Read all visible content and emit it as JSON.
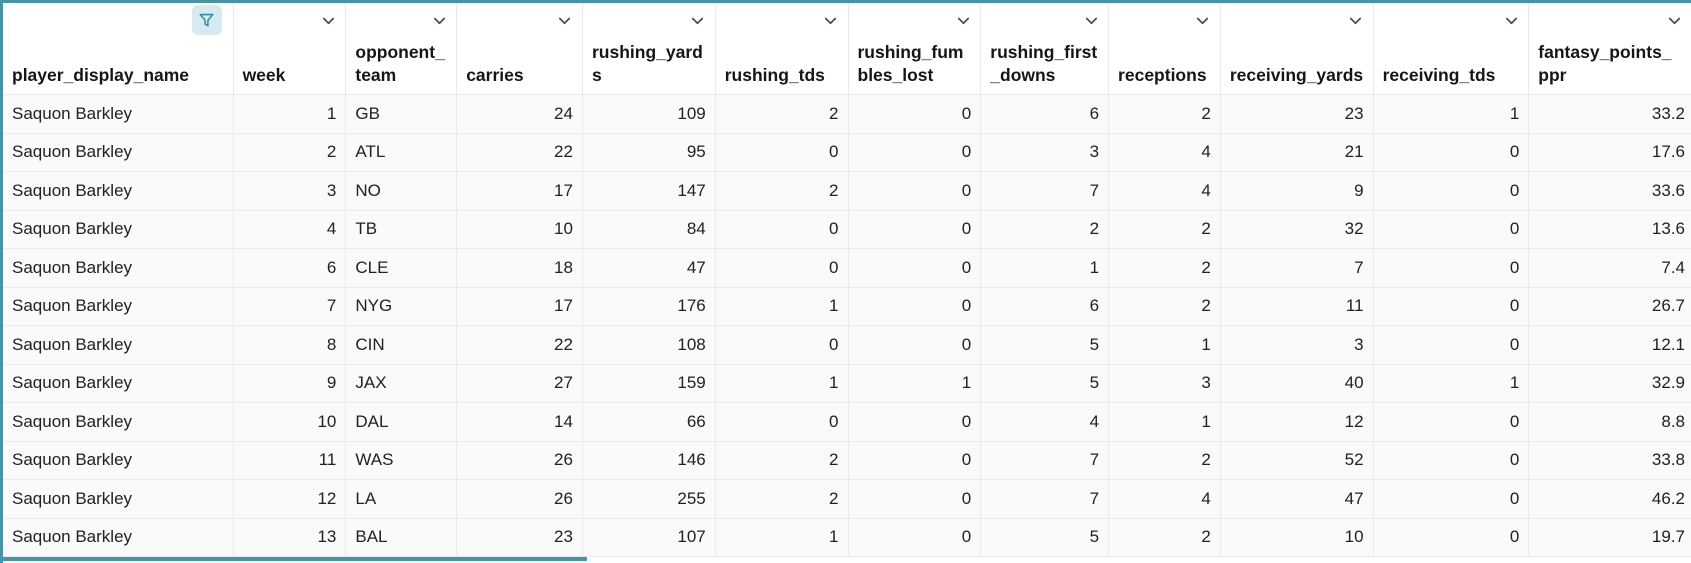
{
  "colors": {
    "accent": "#4a93a6",
    "filter_badge_bg": "#d7eaf0",
    "filter_icon": "#2f8ba3",
    "grid_line": "#e9eaeb",
    "row_bg": "#fafafa",
    "text": "#202124"
  },
  "icons": {
    "column_filter": "funnel-filter-icon",
    "column_menu": "chevron-down-icon"
  },
  "table": {
    "columns": [
      {
        "id": "player_display_name",
        "label": "player_display_name",
        "filter_icon": "funnel-filter-icon"
      },
      {
        "id": "week",
        "label": "week",
        "menu_icon": "chevron-down-icon"
      },
      {
        "id": "opponent_team",
        "label": "opponent_team",
        "menu_icon": "chevron-down-icon"
      },
      {
        "id": "carries",
        "label": "carries",
        "menu_icon": "chevron-down-icon"
      },
      {
        "id": "rushing_yards",
        "label": "rushing_yards",
        "menu_icon": "chevron-down-icon"
      },
      {
        "id": "rushing_tds",
        "label": "rushing_tds",
        "menu_icon": "chevron-down-icon"
      },
      {
        "id": "rushing_fumbles_lost",
        "label": "rushing_fumbles_lost",
        "menu_icon": "chevron-down-icon"
      },
      {
        "id": "rushing_first_downs",
        "label": "rushing_first_downs",
        "menu_icon": "chevron-down-icon"
      },
      {
        "id": "receptions",
        "label": "receptions",
        "menu_icon": "chevron-down-icon"
      },
      {
        "id": "receiving_yards",
        "label": "receiving_yards",
        "menu_icon": "chevron-down-icon"
      },
      {
        "id": "receiving_tds",
        "label": "receiving_tds",
        "menu_icon": "chevron-down-icon"
      },
      {
        "id": "fantasy_points_ppr",
        "label": "fantasy_points_ppr",
        "menu_icon": "chevron-down-icon"
      }
    ],
    "rows": [
      [
        "Saquon Barkley",
        1,
        "GB",
        24,
        109,
        2,
        0,
        6,
        2,
        23,
        1,
        33.2
      ],
      [
        "Saquon Barkley",
        2,
        "ATL",
        22,
        95,
        0,
        0,
        3,
        4,
        21,
        0,
        17.6
      ],
      [
        "Saquon Barkley",
        3,
        "NO",
        17,
        147,
        2,
        0,
        7,
        4,
        9,
        0,
        33.6
      ],
      [
        "Saquon Barkley",
        4,
        "TB",
        10,
        84,
        0,
        0,
        2,
        2,
        32,
        0,
        13.6
      ],
      [
        "Saquon Barkley",
        6,
        "CLE",
        18,
        47,
        0,
        0,
        1,
        2,
        7,
        0,
        7.4
      ],
      [
        "Saquon Barkley",
        7,
        "NYG",
        17,
        176,
        1,
        0,
        6,
        2,
        11,
        0,
        26.7
      ],
      [
        "Saquon Barkley",
        8,
        "CIN",
        22,
        108,
        0,
        0,
        5,
        1,
        3,
        0,
        12.1
      ],
      [
        "Saquon Barkley",
        9,
        "JAX",
        27,
        159,
        1,
        1,
        5,
        3,
        40,
        1,
        32.9
      ],
      [
        "Saquon Barkley",
        10,
        "DAL",
        14,
        66,
        0,
        0,
        4,
        1,
        12,
        0,
        8.8
      ],
      [
        "Saquon Barkley",
        11,
        "WAS",
        26,
        146,
        2,
        0,
        7,
        2,
        52,
        0,
        33.8
      ],
      [
        "Saquon Barkley",
        12,
        "LA",
        26,
        255,
        2,
        0,
        7,
        4,
        47,
        0,
        46.2
      ],
      [
        "Saquon Barkley",
        13,
        "BAL",
        23,
        107,
        1,
        0,
        5,
        2,
        10,
        0,
        19.7
      ]
    ]
  }
}
